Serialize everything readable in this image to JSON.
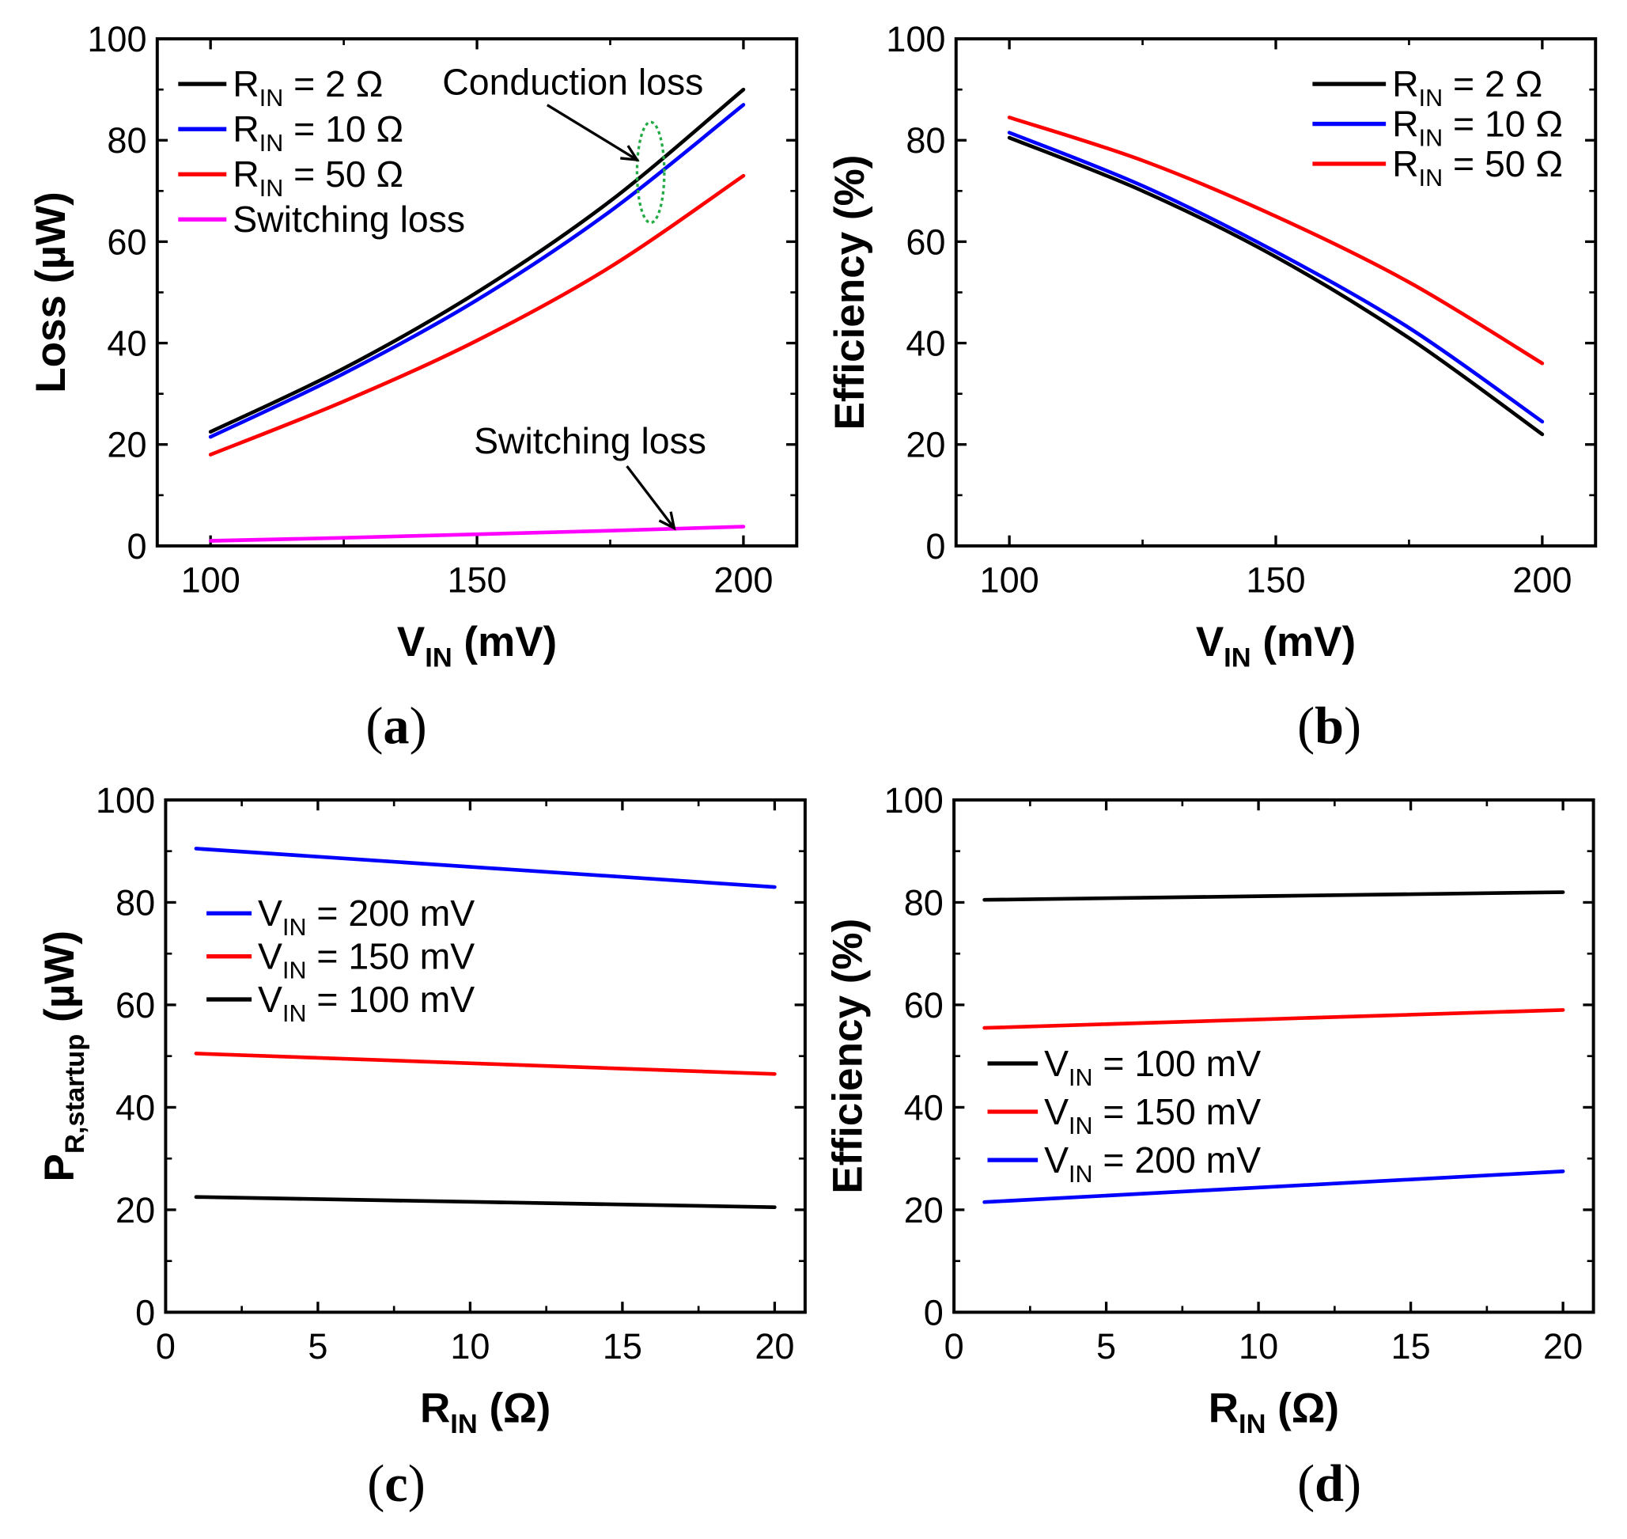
{
  "chart_data": [
    {
      "id": "a",
      "type": "line",
      "caption": "a",
      "xlabel": {
        "main": "V",
        "sub": "IN",
        "rest": " (mV)"
      },
      "ylabel": {
        "main": "Loss (µW)",
        "sub": "",
        "rest": ""
      },
      "xlim": [
        90,
        210
      ],
      "ylim": [
        0,
        100
      ],
      "xticks": [
        100,
        150,
        200
      ],
      "yticks": [
        0,
        20,
        40,
        60,
        80,
        100
      ],
      "legend_position": "top-left",
      "series": [
        {
          "name": "R_IN = 2 Ω",
          "legend": {
            "main": "R",
            "sub": "IN",
            "rest": " = 2 Ω"
          },
          "color": "#000000",
          "x": [
            100,
            125,
            150,
            175,
            200
          ],
          "y": [
            22.5,
            35,
            50,
            68,
            90
          ]
        },
        {
          "name": "R_IN = 10 Ω",
          "legend": {
            "main": "R",
            "sub": "IN",
            "rest": " = 10 Ω"
          },
          "color": "#0000ff",
          "x": [
            100,
            125,
            150,
            175,
            200
          ],
          "y": [
            21.5,
            34,
            48.5,
            66,
            87
          ]
        },
        {
          "name": "R_IN = 50 Ω",
          "legend": {
            "main": "R",
            "sub": "IN",
            "rest": " = 50 Ω"
          },
          "color": "#ff0000",
          "x": [
            100,
            125,
            150,
            175,
            200
          ],
          "y": [
            18,
            28.5,
            40.5,
            55,
            73
          ]
        },
        {
          "name": "Switching loss",
          "legend": {
            "main": "Switching loss",
            "sub": "",
            "rest": ""
          },
          "color": "#ff00ff",
          "x": [
            100,
            125,
            150,
            175,
            200
          ],
          "y": [
            1,
            1.6,
            2.3,
            3,
            3.8
          ]
        }
      ],
      "annotations": [
        {
          "text": "Conduction loss",
          "target": [
            182,
            72
          ]
        },
        {
          "text": "Switching loss",
          "target": [
            187,
            3.5
          ]
        }
      ]
    },
    {
      "id": "b",
      "type": "line",
      "caption": "b",
      "xlabel": {
        "main": "V",
        "sub": "IN",
        "rest": " (mV)"
      },
      "ylabel": {
        "main": "Efficiency (%)",
        "sub": "",
        "rest": ""
      },
      "xlim": [
        90,
        210
      ],
      "ylim": [
        0,
        100
      ],
      "xticks": [
        100,
        150,
        200
      ],
      "yticks": [
        0,
        20,
        40,
        60,
        80,
        100
      ],
      "legend_position": "top-right",
      "series": [
        {
          "name": "R_IN = 2 Ω",
          "legend": {
            "main": "R",
            "sub": "IN",
            "rest": " = 2 Ω"
          },
          "color": "#000000",
          "x": [
            100,
            125,
            150,
            175,
            200
          ],
          "y": [
            80.5,
            70,
            57,
            41,
            22
          ]
        },
        {
          "name": "R_IN = 10 Ω",
          "legend": {
            "main": "R",
            "sub": "IN",
            "rest": " = 10 Ω"
          },
          "color": "#0000ff",
          "x": [
            100,
            125,
            150,
            175,
            200
          ],
          "y": [
            81.5,
            71,
            58,
            43,
            24.5
          ]
        },
        {
          "name": "R_IN = 50 Ω",
          "legend": {
            "main": "R",
            "sub": "IN",
            "rest": " = 50 Ω"
          },
          "color": "#ff0000",
          "x": [
            100,
            125,
            150,
            175,
            200
          ],
          "y": [
            84.5,
            76,
            65,
            52,
            36
          ]
        }
      ]
    },
    {
      "id": "c",
      "type": "line",
      "caption": "c",
      "xlabel": {
        "main": "R",
        "sub": "IN",
        "rest": " (Ω)"
      },
      "ylabel": {
        "main": "P",
        "sub": "R,startup",
        "rest": " (µW)"
      },
      "xlim": [
        0,
        21
      ],
      "ylim": [
        0,
        100
      ],
      "xticks": [
        0,
        5,
        10,
        15,
        20
      ],
      "yticks": [
        0,
        20,
        40,
        60,
        80,
        100
      ],
      "legend_position": "center-left",
      "series": [
        {
          "name": "V_IN = 200 mV",
          "legend": {
            "main": "V",
            "sub": "IN",
            "rest": " = 200 mV"
          },
          "color": "#0000ff",
          "x": [
            1,
            20
          ],
          "y": [
            90.5,
            83
          ]
        },
        {
          "name": "V_IN = 150 mV",
          "legend": {
            "main": "V",
            "sub": "IN",
            "rest": " = 150 mV"
          },
          "color": "#ff0000",
          "x": [
            1,
            20
          ],
          "y": [
            50.5,
            46.5
          ]
        },
        {
          "name": "V_IN = 100 mV",
          "legend": {
            "main": "V",
            "sub": "IN",
            "rest": " = 100 mV"
          },
          "color": "#000000",
          "x": [
            1,
            20
          ],
          "y": [
            22.5,
            20.5
          ]
        }
      ]
    },
    {
      "id": "d",
      "type": "line",
      "caption": "d",
      "xlabel": {
        "main": "R",
        "sub": "IN",
        "rest": " (Ω)"
      },
      "ylabel": {
        "main": "Efficiency (%)",
        "sub": "",
        "rest": ""
      },
      "xlim": [
        0,
        21
      ],
      "ylim": [
        0,
        100
      ],
      "xticks": [
        0,
        5,
        10,
        15,
        20
      ],
      "yticks": [
        0,
        20,
        40,
        60,
        80,
        100
      ],
      "legend_position": "center-left",
      "series": [
        {
          "name": "V_IN = 100 mV",
          "legend": {
            "main": "V",
            "sub": "IN",
            "rest": " = 100 mV"
          },
          "color": "#000000",
          "x": [
            1,
            20
          ],
          "y": [
            80.5,
            82
          ]
        },
        {
          "name": "V_IN = 150 mV",
          "legend": {
            "main": "V",
            "sub": "IN",
            "rest": " = 150 mV"
          },
          "color": "#ff0000",
          "x": [
            1,
            20
          ],
          "y": [
            55.5,
            59
          ]
        },
        {
          "name": "V_IN = 200 mV",
          "legend": {
            "main": "V",
            "sub": "IN",
            "rest": " = 200 mV"
          },
          "color": "#0000ff",
          "x": [
            1,
            20
          ],
          "y": [
            21.5,
            27.5
          ]
        }
      ]
    }
  ]
}
